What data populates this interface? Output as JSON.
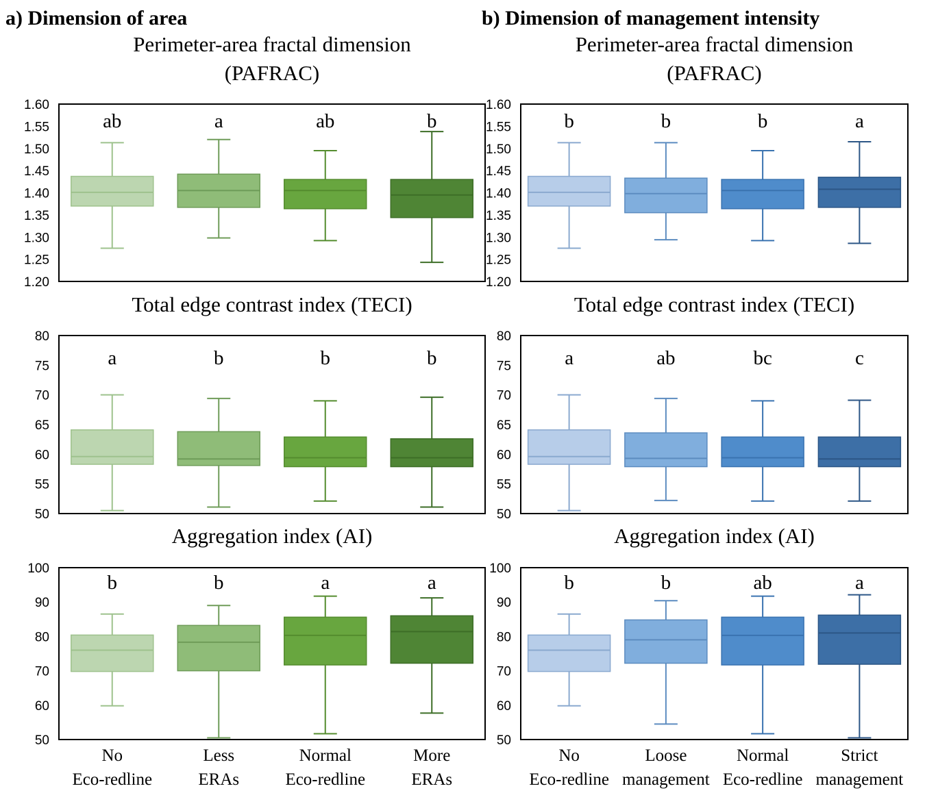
{
  "columns": [
    {
      "heading": "a) Dimension of area",
      "categories": [
        [
          "No",
          "Eco-redline"
        ],
        [
          "Less",
          "ERAs"
        ],
        [
          "Normal",
          "Eco-redline"
        ],
        [
          "More",
          "ERAs"
        ]
      ],
      "colors": [
        "#bcd6b0",
        "#8fbc78",
        "#68a63f",
        "#4f8535"
      ],
      "line_colors": [
        "#9ec28d",
        "#6f9c59",
        "#548c2e",
        "#3d6e27"
      ]
    },
    {
      "heading": "b) Dimension of management intensity",
      "categories": [
        [
          "No",
          "Eco-redline"
        ],
        [
          "Loose",
          "management"
        ],
        [
          "Normal",
          "Eco-redline"
        ],
        [
          "Strict",
          "management"
        ]
      ],
      "colors": [
        "#b7cde9",
        "#80aedd",
        "#4f8ccb",
        "#3d6fa6"
      ],
      "line_colors": [
        "#8aa9cf",
        "#5c8cc0",
        "#3a73b0",
        "#2c5686"
      ]
    }
  ],
  "chart_data": [
    {
      "type": "boxplot",
      "panel": "a1",
      "title_lines": [
        "Perimeter-area fractal dimension",
        "(PAFRAC)"
      ],
      "ylim": [
        1.2,
        1.6
      ],
      "yticks": [
        "1.60",
        "1.55",
        "1.50",
        "1.45",
        "1.40",
        "1.35",
        "1.30",
        "1.25",
        "1.20"
      ],
      "categories": [
        "No Eco-redline",
        "Less ERAs",
        "Normal Eco-redline",
        "More ERAs"
      ],
      "boxes": [
        {
          "min": 1.275,
          "q1": 1.37,
          "median": 1.401,
          "q3": 1.437,
          "max": 1.513,
          "letter": "ab"
        },
        {
          "min": 1.298,
          "q1": 1.367,
          "median": 1.405,
          "q3": 1.442,
          "max": 1.52,
          "letter": "a"
        },
        {
          "min": 1.292,
          "q1": 1.364,
          "median": 1.405,
          "q3": 1.43,
          "max": 1.495,
          "letter": "ab"
        },
        {
          "min": 1.243,
          "q1": 1.344,
          "median": 1.395,
          "q3": 1.43,
          "max": 1.538,
          "letter": "b"
        }
      ]
    },
    {
      "type": "boxplot",
      "panel": "b1",
      "title_lines": [
        "Perimeter-area fractal dimension",
        "(PAFRAC)"
      ],
      "ylim": [
        1.2,
        1.6
      ],
      "yticks": [
        "1.60",
        "1.55",
        "1.50",
        "1.45",
        "1.40",
        "1.35",
        "1.30",
        "1.25",
        "1.20"
      ],
      "categories": [
        "No Eco-redline",
        "Loose management",
        "Normal Eco-redline",
        "Strict management"
      ],
      "boxes": [
        {
          "min": 1.275,
          "q1": 1.37,
          "median": 1.401,
          "q3": 1.437,
          "max": 1.513,
          "letter": "b"
        },
        {
          "min": 1.294,
          "q1": 1.355,
          "median": 1.398,
          "q3": 1.433,
          "max": 1.513,
          "letter": "b"
        },
        {
          "min": 1.292,
          "q1": 1.364,
          "median": 1.405,
          "q3": 1.43,
          "max": 1.495,
          "letter": "b"
        },
        {
          "min": 1.286,
          "q1": 1.367,
          "median": 1.408,
          "q3": 1.435,
          "max": 1.515,
          "letter": "a"
        }
      ]
    },
    {
      "type": "boxplot",
      "panel": "a2",
      "title_lines": [
        "Total edge contrast index (TECI)"
      ],
      "ylim": [
        50,
        80
      ],
      "yticks": [
        "80",
        "75",
        "70",
        "65",
        "60",
        "55",
        "50"
      ],
      "categories": [
        "No Eco-redline",
        "Less ERAs",
        "Normal Eco-redline",
        "More ERAs"
      ],
      "boxes": [
        {
          "min": 50.5,
          "q1": 58.3,
          "median": 59.6,
          "q3": 64.1,
          "max": 70.0,
          "letter": "a"
        },
        {
          "min": 51.1,
          "q1": 58.1,
          "median": 59.2,
          "q3": 63.8,
          "max": 69.4,
          "letter": "b"
        },
        {
          "min": 52.1,
          "q1": 57.9,
          "median": 59.4,
          "q3": 62.9,
          "max": 69.0,
          "letter": "b"
        },
        {
          "min": 51.1,
          "q1": 57.9,
          "median": 59.4,
          "q3": 62.6,
          "max": 69.6,
          "letter": "b"
        }
      ]
    },
    {
      "type": "boxplot",
      "panel": "b2",
      "title_lines": [
        "Total edge contrast index (TECI)"
      ],
      "ylim": [
        50,
        80
      ],
      "yticks": [
        "80",
        "75",
        "70",
        "65",
        "60",
        "55",
        "50"
      ],
      "categories": [
        "No Eco-redline",
        "Loose management",
        "Normal Eco-redline",
        "Strict management"
      ],
      "boxes": [
        {
          "min": 50.5,
          "q1": 58.3,
          "median": 59.6,
          "q3": 64.1,
          "max": 70.0,
          "letter": "a"
        },
        {
          "min": 52.2,
          "q1": 57.9,
          "median": 59.3,
          "q3": 63.6,
          "max": 69.4,
          "letter": "ab"
        },
        {
          "min": 52.1,
          "q1": 57.9,
          "median": 59.4,
          "q3": 62.9,
          "max": 69.0,
          "letter": "bc"
        },
        {
          "min": 52.1,
          "q1": 57.9,
          "median": 59.2,
          "q3": 62.9,
          "max": 69.1,
          "letter": "c"
        }
      ]
    },
    {
      "type": "boxplot",
      "panel": "a3",
      "title_lines": [
        "Aggregation index (AI)"
      ],
      "ylim": [
        50,
        100
      ],
      "yticks": [
        "100",
        "90",
        "80",
        "70",
        "60",
        "50"
      ],
      "categories": [
        "No Eco-redline",
        "Less ERAs",
        "Normal Eco-redline",
        "More ERAs"
      ],
      "boxes": [
        {
          "min": 59.8,
          "q1": 69.8,
          "median": 76.0,
          "q3": 80.4,
          "max": 86.5,
          "letter": "b"
        },
        {
          "min": 50.5,
          "q1": 70.0,
          "median": 78.3,
          "q3": 83.2,
          "max": 89.0,
          "letter": "b"
        },
        {
          "min": 51.7,
          "q1": 71.7,
          "median": 80.3,
          "q3": 85.6,
          "max": 91.7,
          "letter": "a"
        },
        {
          "min": 57.7,
          "q1": 72.2,
          "median": 81.4,
          "q3": 86.0,
          "max": 91.2,
          "letter": "a"
        }
      ]
    },
    {
      "type": "boxplot",
      "panel": "b3",
      "title_lines": [
        "Aggregation index (AI)"
      ],
      "ylim": [
        50,
        100
      ],
      "yticks": [
        "100",
        "90",
        "80",
        "70",
        "60",
        "50"
      ],
      "categories": [
        "No Eco-redline",
        "Loose management",
        "Normal Eco-redline",
        "Strict management"
      ],
      "boxes": [
        {
          "min": 59.8,
          "q1": 69.8,
          "median": 76.0,
          "q3": 80.4,
          "max": 86.5,
          "letter": "b"
        },
        {
          "min": 54.5,
          "q1": 72.2,
          "median": 79.0,
          "q3": 84.8,
          "max": 90.4,
          "letter": "b"
        },
        {
          "min": 51.7,
          "q1": 71.7,
          "median": 80.3,
          "q3": 85.6,
          "max": 91.7,
          "letter": "ab"
        },
        {
          "min": 50.5,
          "q1": 71.9,
          "median": 81.0,
          "q3": 86.2,
          "max": 92.1,
          "letter": "a"
        }
      ]
    }
  ]
}
